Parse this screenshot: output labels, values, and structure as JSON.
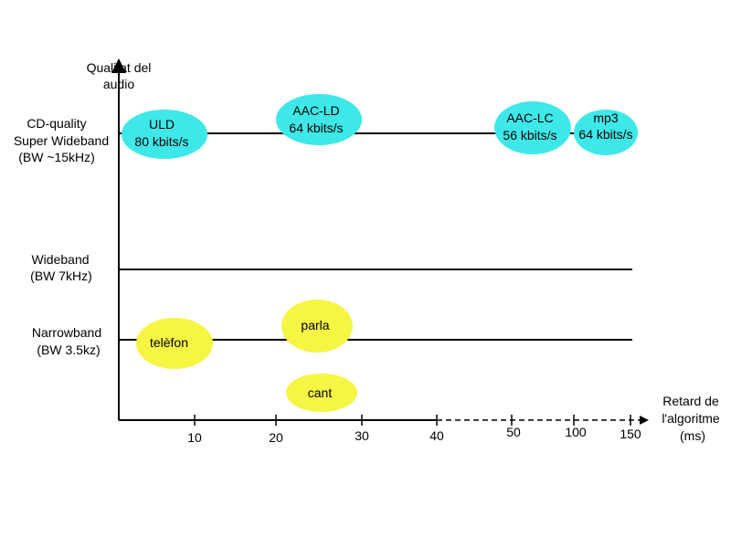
{
  "y_axis_title": [
    "Qualitat del",
    "audio"
  ],
  "x_axis_title": [
    "Retard de",
    "l'algoritme",
    "(ms)"
  ],
  "levels": {
    "cd": [
      "CD-quality",
      "Super Wideband",
      "(BW ~15kHz)"
    ],
    "wideband": [
      "Wideband",
      "(BW 7kHz)"
    ],
    "narrowband": [
      "Narrowband",
      "(BW 3.5kz)"
    ]
  },
  "x_ticks": [
    "10",
    "20",
    "30",
    "40",
    "50",
    "100",
    "150"
  ],
  "codecs": {
    "uld": [
      "ULD",
      "80 kbits/s"
    ],
    "aac_ld": [
      "AAC-LD",
      "64 kbits/s"
    ],
    "aac_lc": [
      "AAC-LC",
      "56 kbits/s"
    ],
    "mp3": [
      "mp3",
      "64 kbits/s"
    ]
  },
  "narrowband_items": {
    "telefon": "telèfon",
    "parla": "parla",
    "cant": "cant"
  },
  "colors": {
    "cyan": "#3ee8e8",
    "yellow": "#f5f544",
    "line": "#000000"
  },
  "x_axis_style_after_40": "dashed"
}
